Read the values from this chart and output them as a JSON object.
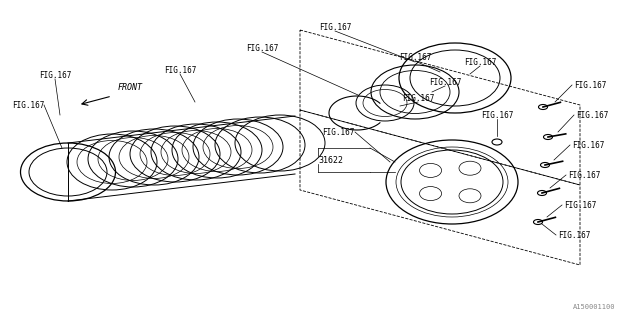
{
  "title": "",
  "bg_color": "#ffffff",
  "line_color": "#000000",
  "label_color": "#000000",
  "fig_label": "FIG.167",
  "part_label": "31622",
  "front_label": "FRONT",
  "watermark": "A150001100",
  "font_size": 6.5,
  "small_font_size": 5.5
}
